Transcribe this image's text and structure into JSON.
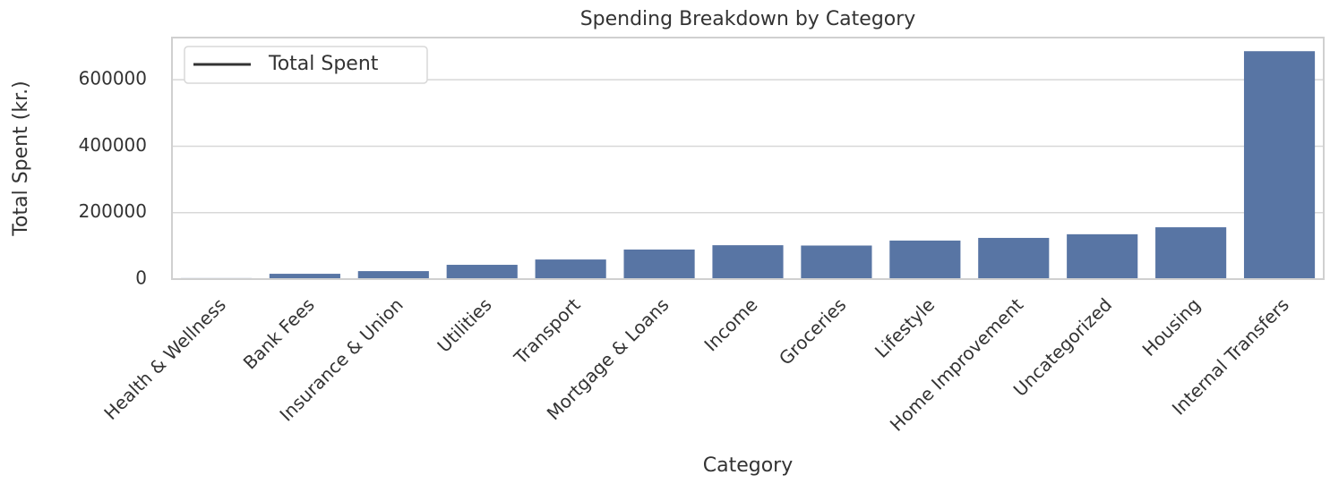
{
  "chart_data": {
    "type": "bar",
    "title": "Spending Breakdown by Category",
    "xlabel": "Category",
    "ylabel": "Total Spent (kr.)",
    "categories": [
      "Health & Wellness",
      "Bank Fees",
      "Insurance & Union",
      "Utilities",
      "Transport",
      "Mortgage & Loans",
      "Income",
      "Groceries",
      "Lifestyle",
      "Home Improvement",
      "Uncategorized",
      "Housing",
      "Internal Transfers"
    ],
    "series": [
      {
        "name": "Total Spent",
        "color": "#5875a4",
        "values": [
          3000,
          16000,
          24000,
          43000,
          59000,
          89000,
          102000,
          101000,
          116000,
          124000,
          135000,
          156000,
          686000
        ]
      }
    ],
    "ylim": [
      0,
      727000
    ],
    "yticks": [
      0,
      200000,
      400000,
      600000
    ],
    "grid": true,
    "legend": "upper left"
  }
}
